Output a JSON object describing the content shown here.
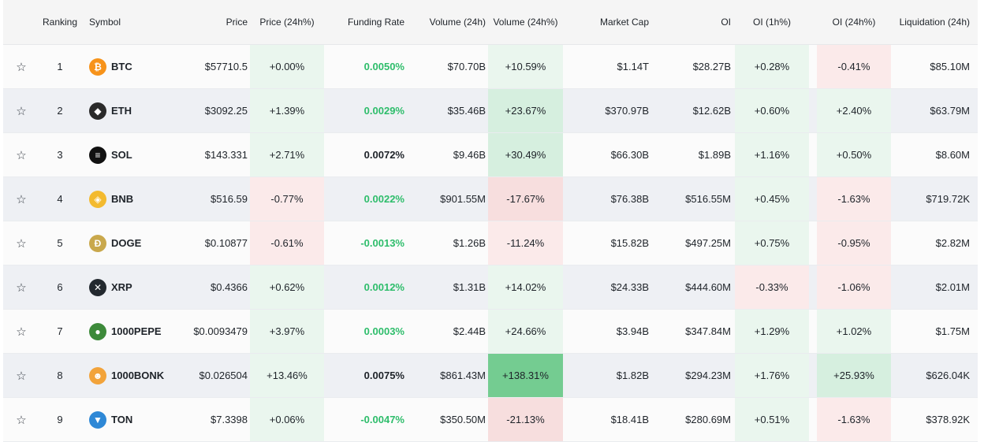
{
  "columns": {
    "ranking": "Ranking",
    "symbol": "Symbol",
    "price": "Price",
    "price_24h": "Price (24h%)",
    "funding_rate": "Funding Rate",
    "volume_24h": "Volume (24h)",
    "volume_24h_pct": "Volume (24h%)",
    "market_cap": "Market Cap",
    "oi": "OI",
    "oi_1h": "OI (1h%)",
    "oi_24h": "OI (24h%)",
    "liquidation_24h": "Liquidation (24h)"
  },
  "rows": [
    {
      "rank": "1",
      "symbol": "BTC",
      "icon": "bitcoin-icon",
      "icon_color": "#f7931a",
      "icon_glyph": "₿",
      "price": "$57710.5",
      "price_24h": "+0.00%",
      "price_24h_tone": "g1",
      "funding": "0.0050%",
      "funding_tone": "green",
      "volume": "$70.70B",
      "volume_pct": "+10.59%",
      "volume_pct_tone": "g1",
      "market_cap": "$1.14T",
      "oi": "$28.27B",
      "oi_1h": "+0.28%",
      "oi_1h_tone": "g1",
      "oi_24h": "-0.41%",
      "oi_24h_tone": "r1",
      "liquidation": "$85.10M"
    },
    {
      "rank": "2",
      "symbol": "ETH",
      "icon": "ethereum-icon",
      "icon_color": "#2a2a2a",
      "icon_glyph": "◆",
      "price": "$3092.25",
      "price_24h": "+1.39%",
      "price_24h_tone": "g1",
      "funding": "0.0029%",
      "funding_tone": "green",
      "volume": "$35.46B",
      "volume_pct": "+23.67%",
      "volume_pct_tone": "g2",
      "market_cap": "$370.97B",
      "oi": "$12.62B",
      "oi_1h": "+0.60%",
      "oi_1h_tone": "g1",
      "oi_24h": "+2.40%",
      "oi_24h_tone": "g1",
      "liquidation": "$63.79M"
    },
    {
      "rank": "3",
      "symbol": "SOL",
      "icon": "solana-icon",
      "icon_color": "#111111",
      "icon_glyph": "≡",
      "price": "$143.331",
      "price_24h": "+2.71%",
      "price_24h_tone": "g1",
      "funding": "0.0072%",
      "funding_tone": "dark",
      "volume": "$9.46B",
      "volume_pct": "+30.49%",
      "volume_pct_tone": "g2",
      "market_cap": "$66.30B",
      "oi": "$1.89B",
      "oi_1h": "+1.16%",
      "oi_1h_tone": "g1",
      "oi_24h": "+0.50%",
      "oi_24h_tone": "g1",
      "liquidation": "$8.60M"
    },
    {
      "rank": "4",
      "symbol": "BNB",
      "icon": "bnb-icon",
      "icon_color": "#f3ba2f",
      "icon_glyph": "◈",
      "price": "$516.59",
      "price_24h": "-0.77%",
      "price_24h_tone": "r1",
      "funding": "0.0022%",
      "funding_tone": "green",
      "volume": "$901.55M",
      "volume_pct": "-17.67%",
      "volume_pct_tone": "r2",
      "market_cap": "$76.38B",
      "oi": "$516.55M",
      "oi_1h": "+0.45%",
      "oi_1h_tone": "g1",
      "oi_24h": "-1.63%",
      "oi_24h_tone": "r1",
      "liquidation": "$719.72K"
    },
    {
      "rank": "5",
      "symbol": "DOGE",
      "icon": "dogecoin-icon",
      "icon_color": "#c9a84c",
      "icon_glyph": "Ð",
      "price": "$0.10877",
      "price_24h": "-0.61%",
      "price_24h_tone": "r1",
      "funding": "-0.0013%",
      "funding_tone": "green",
      "volume": "$1.26B",
      "volume_pct": "-11.24%",
      "volume_pct_tone": "r1",
      "market_cap": "$15.82B",
      "oi": "$497.25M",
      "oi_1h": "+0.75%",
      "oi_1h_tone": "g1",
      "oi_24h": "-0.95%",
      "oi_24h_tone": "r1",
      "liquidation": "$2.82M"
    },
    {
      "rank": "6",
      "symbol": "XRP",
      "icon": "xrp-icon",
      "icon_color": "#23292f",
      "icon_glyph": "✕",
      "price": "$0.4366",
      "price_24h": "+0.62%",
      "price_24h_tone": "g1",
      "funding": "0.0012%",
      "funding_tone": "green",
      "volume": "$1.31B",
      "volume_pct": "+14.02%",
      "volume_pct_tone": "g1",
      "market_cap": "$24.33B",
      "oi": "$444.60M",
      "oi_1h": "-0.33%",
      "oi_1h_tone": "r1",
      "oi_24h": "-1.06%",
      "oi_24h_tone": "r1",
      "liquidation": "$2.01M"
    },
    {
      "rank": "7",
      "symbol": "1000PEPE",
      "icon": "pepe-icon",
      "icon_color": "#3d8a3a",
      "icon_glyph": "●",
      "price": "$0.0093479",
      "price_24h": "+3.97%",
      "price_24h_tone": "g1",
      "funding": "0.0003%",
      "funding_tone": "green",
      "volume": "$2.44B",
      "volume_pct": "+24.66%",
      "volume_pct_tone": "g1",
      "market_cap": "$3.94B",
      "oi": "$347.84M",
      "oi_1h": "+1.29%",
      "oi_1h_tone": "g1",
      "oi_24h": "+1.02%",
      "oi_24h_tone": "g1",
      "liquidation": "$1.75M"
    },
    {
      "rank": "8",
      "symbol": "1000BONK",
      "icon": "bonk-icon",
      "icon_color": "#f2a33a",
      "icon_glyph": "☻",
      "price": "$0.026504",
      "price_24h": "+13.46%",
      "price_24h_tone": "g1",
      "funding": "0.0075%",
      "funding_tone": "dark",
      "volume": "$861.43M",
      "volume_pct": "+138.31%",
      "volume_pct_tone": "g3",
      "market_cap": "$1.82B",
      "oi": "$294.23M",
      "oi_1h": "+1.76%",
      "oi_1h_tone": "g1",
      "oi_24h": "+25.93%",
      "oi_24h_tone": "g2",
      "liquidation": "$626.04K"
    },
    {
      "rank": "9",
      "symbol": "TON",
      "icon": "toncoin-icon",
      "icon_color": "#2e88d6",
      "icon_glyph": "▼",
      "price": "$7.3398",
      "price_24h": "+0.06%",
      "price_24h_tone": "g1",
      "funding": "-0.0047%",
      "funding_tone": "green",
      "volume": "$350.50M",
      "volume_pct": "-21.13%",
      "volume_pct_tone": "r2",
      "market_cap": "$18.41B",
      "oi": "$280.69M",
      "oi_1h": "+0.51%",
      "oi_1h_tone": "g1",
      "oi_24h": "-1.63%",
      "oi_24h_tone": "r1",
      "liquidation": "$378.92K"
    }
  ],
  "star_glyph": "☆"
}
